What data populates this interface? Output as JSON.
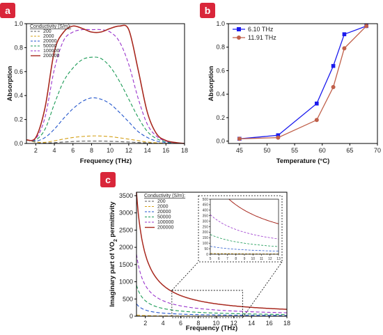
{
  "chart_data": [
    {
      "panel": "a",
      "type": "line",
      "xlabel": "Frequency (THz)",
      "ylabel": "Absorption",
      "xlim": [
        1,
        18
      ],
      "ylim": [
        0,
        1.0
      ],
      "xticks": [
        2,
        4,
        6,
        8,
        10,
        12,
        14,
        16,
        18
      ],
      "yticks": [
        0.0,
        0.2,
        0.4,
        0.6,
        0.8,
        1.0
      ],
      "ytick_labels": [
        "0.0",
        "0.2",
        "0.4",
        "0.6",
        "0.8",
        "1.0"
      ],
      "legend_title": "Conductivity (S/m):",
      "legend_position": "top-left",
      "x": [
        1,
        2,
        3,
        4,
        5,
        6,
        7,
        8,
        9,
        10,
        11,
        12,
        13,
        14,
        15,
        16,
        17,
        18
      ],
      "series": [
        {
          "name": "200",
          "color": "#555555",
          "style": "dashed",
          "values": [
            0.03,
            0.01,
            0.004,
            0.007,
            0.012,
            0.016,
            0.019,
            0.02,
            0.02,
            0.018,
            0.015,
            0.012,
            0.008,
            0.005,
            0.002,
            0.001,
            0.0005,
            0.0
          ]
        },
        {
          "name": "2000",
          "color": "#d4a017",
          "style": "dashed",
          "values": [
            0.03,
            0.012,
            0.01,
            0.022,
            0.037,
            0.05,
            0.058,
            0.063,
            0.062,
            0.057,
            0.047,
            0.036,
            0.024,
            0.012,
            0.005,
            0.002,
            0.001,
            0.0
          ]
        },
        {
          "name": "20000",
          "color": "#2255cc",
          "style": "dashed",
          "values": [
            0.03,
            0.02,
            0.05,
            0.12,
            0.21,
            0.29,
            0.35,
            0.38,
            0.37,
            0.33,
            0.26,
            0.18,
            0.1,
            0.05,
            0.02,
            0.008,
            0.003,
            0.0
          ]
        },
        {
          "name": "50000",
          "color": "#1a9a55",
          "style": "dashed",
          "values": [
            0.03,
            0.03,
            0.12,
            0.33,
            0.52,
            0.63,
            0.7,
            0.72,
            0.71,
            0.64,
            0.52,
            0.37,
            0.22,
            0.1,
            0.04,
            0.015,
            0.005,
            0.0
          ]
        },
        {
          "name": "100000",
          "color": "#9933cc",
          "style": "dashed",
          "values": [
            0.03,
            0.04,
            0.22,
            0.62,
            0.86,
            0.93,
            0.95,
            0.95,
            0.95,
            0.93,
            0.85,
            0.66,
            0.38,
            0.16,
            0.06,
            0.02,
            0.006,
            0.0
          ]
        },
        {
          "name": "200000",
          "color": "#a8281e",
          "style": "solid",
          "values": [
            0.03,
            0.05,
            0.3,
            0.77,
            0.93,
            0.98,
            0.96,
            0.93,
            0.93,
            0.96,
            0.98,
            0.95,
            0.62,
            0.26,
            0.08,
            0.025,
            0.008,
            0.0
          ]
        }
      ]
    },
    {
      "panel": "b",
      "type": "line",
      "xlabel": "Temperature (°C)",
      "ylabel": "Absorption",
      "xlim": [
        43,
        70
      ],
      "ylim": [
        -0.02,
        1.0
      ],
      "xticks": [
        45,
        50,
        55,
        60,
        65,
        70
      ],
      "yticks": [
        0.0,
        0.2,
        0.4,
        0.6,
        0.8,
        1.0
      ],
      "ytick_labels": [
        "0.0",
        "0.2",
        "0.4",
        "0.6",
        "0.8",
        "1.0"
      ],
      "legend_position": "top-left",
      "series": [
        {
          "name": "6.10 THz",
          "color": "#1a1aee",
          "marker": "square",
          "x": [
            45,
            52,
            59,
            62,
            64,
            68
          ],
          "values": [
            0.02,
            0.05,
            0.32,
            0.64,
            0.91,
            0.98
          ]
        },
        {
          "name": "11.91 THz",
          "color": "#c0604a",
          "marker": "circle",
          "x": [
            45,
            52,
            59,
            62,
            64,
            68
          ],
          "values": [
            0.02,
            0.03,
            0.18,
            0.46,
            0.79,
            0.98
          ]
        }
      ]
    },
    {
      "panel": "c",
      "type": "line",
      "xlabel": "Frequency (THz)",
      "ylabel_main": "Imaginary part of VO",
      "ylabel_sub": "2",
      "ylabel_tail": " permittivity",
      "xlim": [
        1,
        18
      ],
      "ylim": [
        0,
        3600
      ],
      "xticks": [
        2,
        4,
        6,
        8,
        10,
        12,
        14,
        16,
        18
      ],
      "yticks": [
        0,
        500,
        1000,
        1500,
        2000,
        2500,
        3000,
        3500
      ],
      "ytick_labels": [
        "0",
        "500",
        "1000",
        "1500",
        "2000",
        "2500",
        "3000",
        "3500"
      ],
      "legend_title": "Conductivity (S/m):",
      "legend_position": "top-left",
      "series": [
        {
          "name": "200",
          "color": "#555555",
          "style": "dashed",
          "sigma": 200
        },
        {
          "name": "2000",
          "color": "#d4a017",
          "style": "dashed",
          "sigma": 2000
        },
        {
          "name": "20000",
          "color": "#2255cc",
          "style": "dashed",
          "sigma": 20000
        },
        {
          "name": "50000",
          "color": "#1a9a55",
          "style": "dashed",
          "sigma": 50000
        },
        {
          "name": "100000",
          "color": "#9933cc",
          "style": "dashed",
          "sigma": 100000
        },
        {
          "name": "200000",
          "color": "#a8281e",
          "style": "solid",
          "sigma": 200000
        }
      ],
      "inset": {
        "xlim": [
          5,
          13
        ],
        "ylim": [
          0,
          500
        ],
        "xticks": [
          5,
          6,
          7,
          8,
          9,
          10,
          11,
          12,
          13
        ],
        "yticks": [
          0,
          50,
          100,
          150,
          200,
          250,
          300,
          350,
          400,
          450,
          500
        ],
        "ytick_labels": [
          "0",
          "50",
          "100",
          "150",
          "200",
          "250",
          "300",
          "350",
          "400",
          "450",
          "500"
        ]
      }
    }
  ],
  "panel_labels": [
    "a",
    "b",
    "c"
  ]
}
